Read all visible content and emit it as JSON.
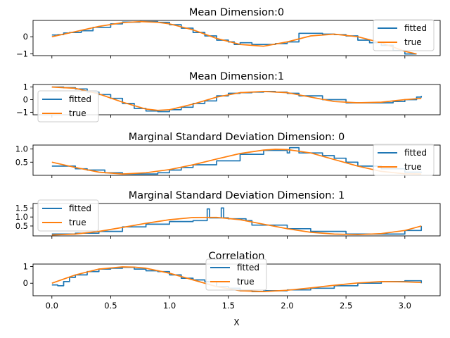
{
  "colors": {
    "fitted": "#1f77b4",
    "true": "#ff7f0e",
    "axes": "#000000",
    "background": "#ffffff"
  },
  "x_label": "X",
  "chart_data": [
    {
      "type": "line",
      "title": "Mean Dimension:0",
      "xlim": [
        -0.16,
        3.3
      ],
      "ylim": [
        -1.1,
        0.95
      ],
      "xticks": [
        0.0,
        0.5,
        1.0,
        1.5,
        2.0,
        2.5,
        3.0
      ],
      "yticks": [
        -1,
        0
      ],
      "ytick_labels": [
        "−1",
        "0"
      ],
      "show_xtick_labels": false,
      "legend": "top-right",
      "series": [
        {
          "name": "fitted",
          "x": [
            0.0,
            0.05,
            0.1,
            0.15,
            0.25,
            0.35,
            0.5,
            0.6,
            0.75,
            0.9,
            1.0,
            1.1,
            1.2,
            1.3,
            1.4,
            1.5,
            1.55,
            1.6,
            1.7,
            1.8,
            1.9,
            2.0,
            2.1,
            2.2,
            2.3,
            2.4,
            2.5,
            2.6,
            2.7,
            2.8,
            2.9,
            3.0,
            3.1
          ],
          "y": [
            0.1,
            0.12,
            0.22,
            0.25,
            0.35,
            0.55,
            0.75,
            0.85,
            0.88,
            0.84,
            0.7,
            0.5,
            0.25,
            0.05,
            -0.2,
            -0.3,
            -0.45,
            -0.35,
            -0.45,
            -0.45,
            -0.4,
            -0.3,
            0.2,
            0.2,
            0.15,
            0.12,
            0.05,
            -0.2,
            -0.35,
            -0.5,
            -0.8,
            -1.0,
            -1.0
          ]
        },
        {
          "name": "true",
          "x": [
            0.0,
            0.2,
            0.4,
            0.6,
            0.75,
            0.9,
            1.0,
            1.2,
            1.4,
            1.6,
            1.8,
            2.0,
            2.2,
            2.4,
            2.6,
            2.8,
            3.0,
            3.1
          ],
          "y": [
            0.0,
            0.3,
            0.6,
            0.82,
            0.88,
            0.84,
            0.75,
            0.4,
            -0.1,
            -0.45,
            -0.55,
            -0.3,
            0.05,
            0.15,
            0.0,
            -0.35,
            -0.85,
            -1.0
          ]
        }
      ]
    },
    {
      "type": "line",
      "title": "Mean Dimension:1",
      "xlim": [
        -0.16,
        3.3
      ],
      "ylim": [
        -1.2,
        1.2
      ],
      "xticks": [
        0.0,
        0.5,
        1.0,
        1.5,
        2.0,
        2.5,
        3.0
      ],
      "yticks": [
        -1,
        0,
        1
      ],
      "ytick_labels": [
        "−1",
        "0",
        "1"
      ],
      "show_xtick_labels": false,
      "legend": "center-left",
      "series": [
        {
          "name": "fitted",
          "x": [
            0.0,
            0.1,
            0.2,
            0.3,
            0.4,
            0.5,
            0.6,
            0.7,
            0.8,
            0.9,
            1.0,
            1.1,
            1.2,
            1.3,
            1.4,
            1.5,
            1.6,
            1.7,
            1.8,
            1.9,
            2.0,
            2.1,
            2.3,
            2.5,
            2.7,
            2.9,
            3.0,
            3.1,
            3.14
          ],
          "y": [
            1.0,
            0.95,
            0.85,
            0.6,
            0.4,
            0.1,
            -0.3,
            -0.7,
            -0.9,
            -0.95,
            -0.8,
            -0.6,
            -0.3,
            -0.1,
            0.3,
            0.5,
            0.55,
            0.6,
            0.65,
            0.6,
            0.5,
            0.3,
            0.0,
            -0.25,
            -0.25,
            -0.15,
            0.0,
            0.2,
            0.3
          ]
        },
        {
          "name": "true",
          "x": [
            0.0,
            0.2,
            0.4,
            0.6,
            0.8,
            0.9,
            1.0,
            1.2,
            1.4,
            1.6,
            1.8,
            2.0,
            2.2,
            2.4,
            2.6,
            2.8,
            3.0,
            3.14
          ],
          "y": [
            1.0,
            0.9,
            0.45,
            -0.2,
            -0.75,
            -0.85,
            -0.8,
            -0.35,
            0.2,
            0.55,
            0.65,
            0.55,
            0.2,
            -0.15,
            -0.25,
            -0.2,
            0.0,
            0.1
          ]
        }
      ]
    },
    {
      "type": "line",
      "title": "Marginal Standard Deviation Dimension: 0",
      "xlim": [
        -0.16,
        3.3
      ],
      "ylim": [
        0.0,
        1.15
      ],
      "xticks": [
        0.0,
        0.5,
        1.0,
        1.5,
        2.0,
        2.5,
        3.0
      ],
      "yticks": [
        0.5,
        1.0
      ],
      "ytick_labels": [
        "0.5",
        "1.0"
      ],
      "show_xtick_labels": false,
      "legend": "top-right",
      "series": [
        {
          "name": "fitted",
          "x": [
            0.0,
            0.1,
            0.2,
            0.3,
            0.45,
            0.6,
            0.8,
            0.9,
            1.0,
            1.1,
            1.2,
            1.4,
            1.6,
            1.8,
            2.0,
            2.02,
            2.1,
            2.3,
            2.4,
            2.5,
            2.6,
            2.8,
            3.0,
            3.14
          ],
          "y": [
            0.35,
            0.35,
            0.25,
            0.2,
            0.1,
            0.05,
            0.05,
            0.1,
            0.2,
            0.3,
            0.4,
            0.55,
            0.8,
            0.95,
            0.85,
            1.05,
            0.85,
            0.75,
            0.65,
            0.5,
            0.35,
            0.25,
            0.12,
            0.1
          ]
        },
        {
          "name": "true",
          "x": [
            0.0,
            0.2,
            0.4,
            0.6,
            0.8,
            1.0,
            1.2,
            1.4,
            1.6,
            1.8,
            1.9,
            2.0,
            2.2,
            2.4,
            2.6,
            2.8,
            3.0,
            3.14
          ],
          "y": [
            0.5,
            0.3,
            0.12,
            0.05,
            0.1,
            0.22,
            0.4,
            0.62,
            0.83,
            0.96,
            0.99,
            0.98,
            0.85,
            0.6,
            0.35,
            0.15,
            0.06,
            0.05
          ]
        }
      ]
    },
    {
      "type": "line",
      "title": "Marginal Standard Deviation Dimension: 1",
      "xlim": [
        -0.16,
        3.3
      ],
      "ylim": [
        -0.05,
        1.75
      ],
      "xticks": [
        0.0,
        0.5,
        1.0,
        1.5,
        2.0,
        2.5,
        3.0
      ],
      "yticks": [
        0.5,
        1.0,
        1.5
      ],
      "ytick_labels": [
        "0.5",
        "1.0",
        "1.5"
      ],
      "show_xtick_labels": false,
      "legend": "top-left",
      "series": [
        {
          "name": "fitted",
          "x": [
            0.0,
            0.2,
            0.4,
            0.6,
            0.8,
            1.0,
            1.2,
            1.3,
            1.32,
            1.34,
            1.4,
            1.44,
            1.46,
            1.5,
            1.65,
            1.7,
            1.85,
            2.0,
            2.2,
            2.5,
            2.8,
            3.0,
            3.14
          ],
          "y": [
            0.05,
            0.1,
            0.2,
            0.45,
            0.6,
            0.75,
            0.8,
            0.8,
            1.45,
            0.95,
            0.95,
            1.5,
            0.95,
            0.9,
            0.8,
            0.55,
            0.55,
            0.35,
            0.2,
            0.05,
            0.05,
            0.25,
            0.5
          ]
        },
        {
          "name": "true",
          "x": [
            0.0,
            0.2,
            0.4,
            0.6,
            0.8,
            1.0,
            1.2,
            1.4,
            1.6,
            1.8,
            2.0,
            2.2,
            2.4,
            2.6,
            2.8,
            3.0,
            3.14
          ],
          "y": [
            0.0,
            0.05,
            0.2,
            0.42,
            0.65,
            0.85,
            0.97,
            0.98,
            0.85,
            0.6,
            0.35,
            0.15,
            0.05,
            0.02,
            0.08,
            0.25,
            0.5
          ]
        }
      ]
    },
    {
      "type": "line",
      "title": "Correlation",
      "xlim": [
        -0.16,
        3.3
      ],
      "ylim": [
        -0.75,
        1.15
      ],
      "xticks": [
        0.0,
        0.5,
        1.0,
        1.5,
        2.0,
        2.5,
        3.0
      ],
      "yticks": [
        0,
        1
      ],
      "ytick_labels": [
        "0",
        "1"
      ],
      "xtick_labels": [
        "0.0",
        "0.5",
        "1.0",
        "1.5",
        "2.0",
        "2.5",
        "3.0"
      ],
      "show_xtick_labels": true,
      "xlabel": "X",
      "legend": "upper-center",
      "series": [
        {
          "name": "fitted",
          "x": [
            0.0,
            0.05,
            0.1,
            0.15,
            0.2,
            0.3,
            0.4,
            0.5,
            0.6,
            0.7,
            0.8,
            0.9,
            1.0,
            1.1,
            1.2,
            1.3,
            1.4,
            1.5,
            1.6,
            1.7,
            1.8,
            1.9,
            2.0,
            2.2,
            2.4,
            2.6,
            2.8,
            3.0,
            3.14
          ],
          "y": [
            -0.1,
            -0.15,
            0.1,
            0.35,
            0.5,
            0.7,
            0.85,
            0.9,
            0.95,
            0.85,
            0.75,
            0.7,
            0.5,
            0.3,
            0.2,
            0.1,
            -0.2,
            -0.3,
            -0.45,
            -0.5,
            -0.45,
            -0.45,
            -0.4,
            -0.3,
            -0.15,
            0.0,
            0.1,
            0.15,
            0.0
          ]
        },
        {
          "name": "true",
          "x": [
            0.0,
            0.2,
            0.4,
            0.6,
            0.7,
            0.8,
            1.0,
            1.2,
            1.4,
            1.6,
            1.8,
            2.0,
            2.2,
            2.4,
            2.6,
            2.8,
            3.0,
            3.14
          ],
          "y": [
            0.0,
            0.5,
            0.85,
            0.98,
            0.97,
            0.9,
            0.6,
            0.2,
            -0.2,
            -0.45,
            -0.5,
            -0.42,
            -0.28,
            -0.12,
            0.02,
            0.1,
            0.08,
            0.05
          ]
        }
      ]
    }
  ]
}
